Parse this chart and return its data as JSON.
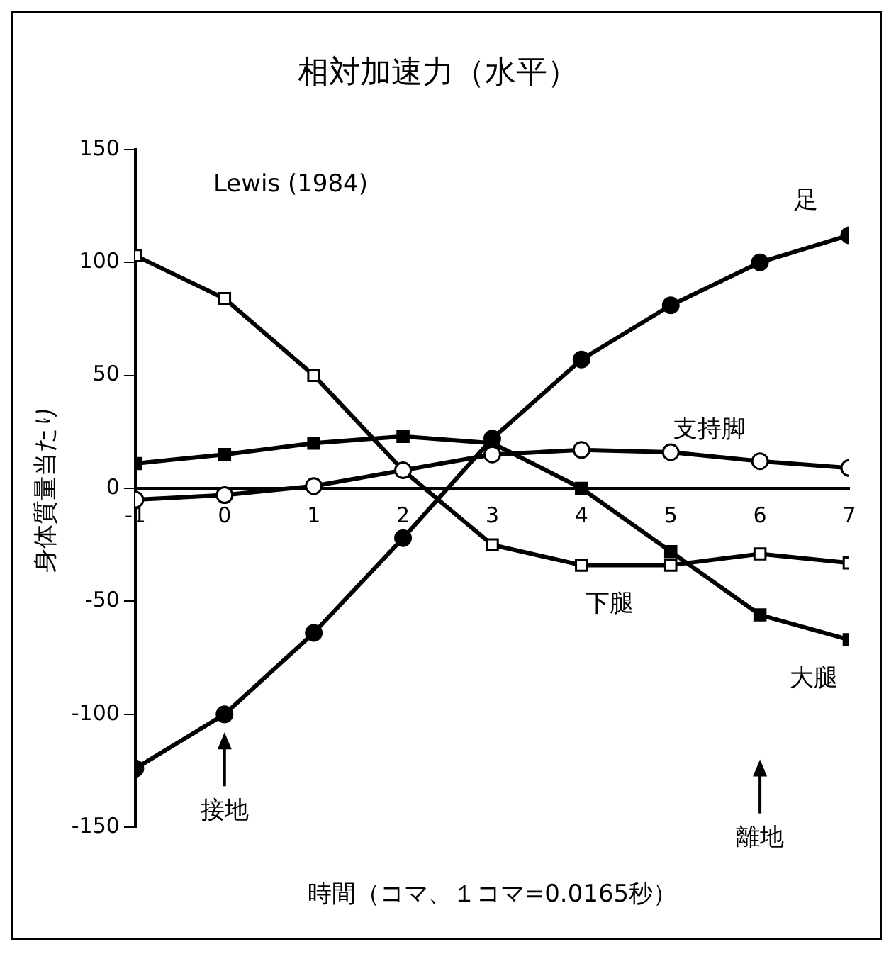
{
  "chart_data": {
    "type": "line",
    "title": "相対加速力（水平）",
    "xlabel": "時間（コマ、１コマ=0.0165秒）",
    "ylabel": "身体質量当たり",
    "x": [
      -1,
      0,
      1,
      2,
      3,
      4,
      5,
      6,
      7
    ],
    "series": [
      {
        "name": "足",
        "color": "#000000",
        "marker": "circle",
        "values": [
          -124,
          -100,
          -64,
          -22,
          22,
          57,
          81,
          100,
          112
        ]
      },
      {
        "name": "支持脚",
        "color": "#000000",
        "marker": "circle",
        "colors": [
          "#ffffff",
          "#ffffff",
          "#ffffff",
          "#ffffff",
          "#ffffff",
          "#ffffff",
          "#ffffff",
          "#ffffff",
          "#ffffff"
        ],
        "values": [
          -5,
          -3,
          1,
          8,
          15,
          17,
          16,
          12,
          9
        ]
      },
      {
        "name": "下腿",
        "color": "#000000",
        "marker": "square",
        "colors": [
          "#ffffff",
          "#ffffff",
          "#ffffff",
          "#ffffff",
          "#ffffff",
          "#ffffff",
          "#ffffff",
          "#ffffff",
          "#ffffff"
        ],
        "values": [
          103,
          84,
          50,
          8,
          -25,
          -34,
          -34,
          -29,
          -33
        ]
      },
      {
        "name": "大腿",
        "color": "#000000",
        "marker": "square",
        "values": [
          11,
          15,
          20,
          23,
          20,
          0,
          -28,
          -56,
          -67
        ]
      }
    ],
    "xlim": [
      -1,
      7
    ],
    "xticks": [
      -1,
      0,
      1,
      2,
      3,
      4,
      5,
      6,
      7
    ],
    "ylim": [
      -150,
      150
    ],
    "yticks": [
      -150,
      -100,
      -50,
      0,
      50,
      100,
      150
    ],
    "grid": false,
    "legend": false,
    "line_style": "solid",
    "annotations": [
      "Lewis (1984)",
      "接地",
      "離地"
    ]
  }
}
